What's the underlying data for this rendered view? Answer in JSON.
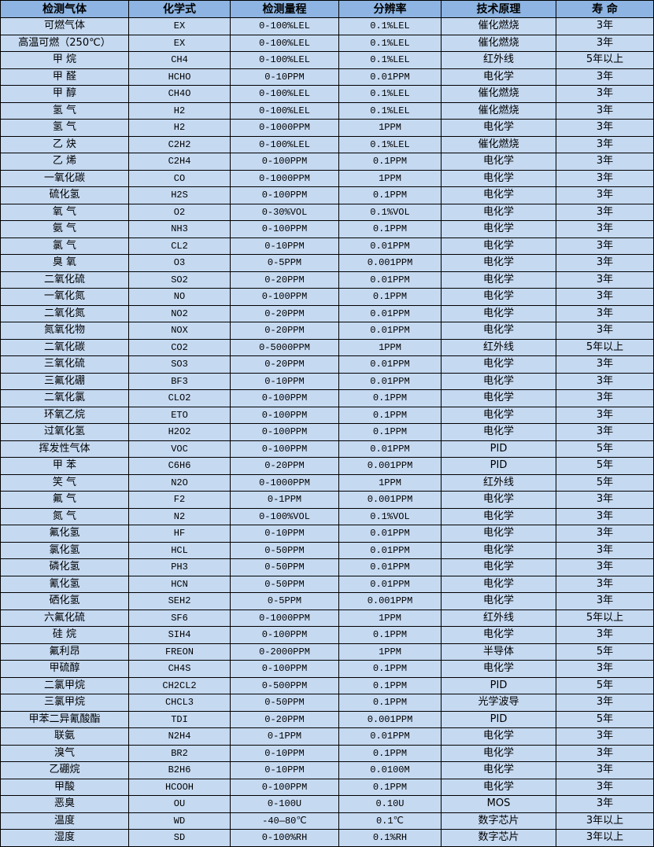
{
  "table": {
    "headers": [
      "检测气体",
      "化学式",
      "检测量程",
      "分辨率",
      "技术原理",
      "寿 命"
    ],
    "rows": [
      [
        "可燃气体",
        "EX",
        "0-100%LEL",
        "0.1%LEL",
        "催化燃烧",
        "3年"
      ],
      [
        "高温可燃（250℃）",
        "EX",
        "0-100%LEL",
        "0.1%LEL",
        "催化燃烧",
        "3年"
      ],
      [
        "甲 烷",
        "CH4",
        "0-100%LEL",
        "0.1%LEL",
        "红外线",
        "5年以上"
      ],
      [
        "甲 醛",
        "HCHO",
        "0-10PPM",
        "0.01PPM",
        "电化学",
        "3年"
      ],
      [
        "甲 醇",
        "CH4O",
        "0-100%LEL",
        "0.1%LEL",
        "催化燃烧",
        "3年"
      ],
      [
        "氢 气",
        "H2",
        "0-100%LEL",
        "0.1%LEL",
        "催化燃烧",
        "3年"
      ],
      [
        "氢 气",
        "H2",
        "0-1000PPM",
        "1PPM",
        "电化学",
        "3年"
      ],
      [
        "乙 炔",
        "C2H2",
        "0-100%LEL",
        "0.1%LEL",
        "催化燃烧",
        "3年"
      ],
      [
        "乙 烯",
        "C2H4",
        "0-100PPM",
        "0.1PPM",
        "电化学",
        "3年"
      ],
      [
        "一氧化碳",
        "CO",
        "0-1000PPM",
        "1PPM",
        "电化学",
        "3年"
      ],
      [
        "硫化氢",
        "H2S",
        "0-100PPM",
        "0.1PPM",
        "电化学",
        "3年"
      ],
      [
        "氧 气",
        "O2",
        "0-30%VOL",
        "0.1%VOL",
        "电化学",
        "3年"
      ],
      [
        "氨 气",
        "NH3",
        "0-100PPM",
        "0.1PPM",
        "电化学",
        "3年"
      ],
      [
        "氯 气",
        "CL2",
        "0-10PPM",
        "0.01PPM",
        "电化学",
        "3年"
      ],
      [
        "臭 氧",
        "O3",
        "0-5PPM",
        "0.001PPM",
        "电化学",
        "3年"
      ],
      [
        "二氧化硫",
        "SO2",
        "0-20PPM",
        "0.01PPM",
        "电化学",
        "3年"
      ],
      [
        "一氧化氮",
        "NO",
        "0-100PPM",
        "0.1PPM",
        "电化学",
        "3年"
      ],
      [
        "二氧化氮",
        "NO2",
        "0-20PPM",
        "0.01PPM",
        "电化学",
        "3年"
      ],
      [
        "氮氧化物",
        "NOX",
        "0-20PPM",
        "0.01PPM",
        "电化学",
        "3年"
      ],
      [
        "二氧化碳",
        "CO2",
        "0-5000PPM",
        "1PPM",
        "红外线",
        "5年以上"
      ],
      [
        "三氧化硫",
        "SO3",
        "0-20PPM",
        "0.01PPM",
        "电化学",
        "3年"
      ],
      [
        "三氟化硼",
        "BF3",
        "0-10PPM",
        "0.01PPM",
        "电化学",
        "3年"
      ],
      [
        "二氧化氯",
        "CLO2",
        "0-100PPM",
        "0.1PPM",
        "电化学",
        "3年"
      ],
      [
        "环氧乙烷",
        "ETO",
        "0-100PPM",
        "0.1PPM",
        "电化学",
        "3年"
      ],
      [
        "过氧化氢",
        "H2O2",
        "0-100PPM",
        "0.1PPM",
        "电化学",
        "3年"
      ],
      [
        "挥发性气体",
        "VOC",
        "0-100PPM",
        "0.01PPM",
        "PID",
        "5年"
      ],
      [
        "甲 苯",
        "C6H6",
        "0-20PPM",
        "0.001PPM",
        "PID",
        "5年"
      ],
      [
        "笑 气",
        "N2O",
        "0-1000PPM",
        "1PPM",
        "红外线",
        "5年"
      ],
      [
        "氟 气",
        "F2",
        "0-1PPM",
        "0.001PPM",
        "电化学",
        "3年"
      ],
      [
        "氮 气",
        "N2",
        "0-100%VOL",
        "0.1%VOL",
        "电化学",
        "3年"
      ],
      [
        "氟化氢",
        "HF",
        "0-10PPM",
        "0.01PPM",
        "电化学",
        "3年"
      ],
      [
        "氯化氢",
        "HCL",
        "0-50PPM",
        "0.01PPM",
        "电化学",
        "3年"
      ],
      [
        "磷化氢",
        "PH3",
        "0-50PPM",
        "0.01PPM",
        "电化学",
        "3年"
      ],
      [
        "氰化氢",
        "HCN",
        "0-50PPM",
        "0.01PPM",
        "电化学",
        "3年"
      ],
      [
        "硒化氢",
        "SEH2",
        "0-5PPM",
        "0.001PPM",
        "电化学",
        "3年"
      ],
      [
        "六氟化硫",
        "SF6",
        "0-1000PPM",
        "1PPM",
        "红外线",
        "5年以上"
      ],
      [
        "硅 烷",
        "SIH4",
        "0-100PPM",
        "0.1PPM",
        "电化学",
        "3年"
      ],
      [
        "氟利昂",
        "FREON",
        "0-2000PPM",
        "1PPM",
        "半导体",
        "5年"
      ],
      [
        "甲硫醇",
        "CH4S",
        "0-100PPM",
        "0.1PPM",
        "电化学",
        "3年"
      ],
      [
        "二氯甲烷",
        "CH2CL2",
        "0-500PPM",
        "0.1PPM",
        "PID",
        "5年"
      ],
      [
        "三氯甲烷",
        "CHCL3",
        "0-50PPM",
        "0.1PPM",
        "光学波导",
        "3年"
      ],
      [
        "甲苯二异氰酸酯",
        "TDI",
        "0-20PPM",
        "0.001PPM",
        "PID",
        "5年"
      ],
      [
        "联氨",
        "N2H4",
        "0-1PPM",
        "0.01PPM",
        "电化学",
        "3年"
      ],
      [
        "溴气",
        "BR2",
        "0-10PPM",
        "0.1PPM",
        "电化学",
        "3年"
      ],
      [
        "乙硼烷",
        "B2H6",
        "0-10PPM",
        "0.0100M",
        "电化学",
        "3年"
      ],
      [
        "甲酸",
        "HCOOH",
        "0-100PPM",
        "0.1PPM",
        "电化学",
        "3年"
      ],
      [
        "恶臭",
        "OU",
        "0-100U",
        "0.10U",
        "MOS",
        "3年"
      ],
      [
        "温度",
        "WD",
        "-40—80℃",
        "0.1℃",
        "数字芯片",
        "3年以上"
      ],
      [
        "湿度",
        "SD",
        "0-100%RH",
        "0.1%RH",
        "数字芯片",
        "3年以上"
      ]
    ]
  },
  "colors": {
    "header_bg": "#8DB4E2",
    "row_bg": "#C5D9F1"
  }
}
